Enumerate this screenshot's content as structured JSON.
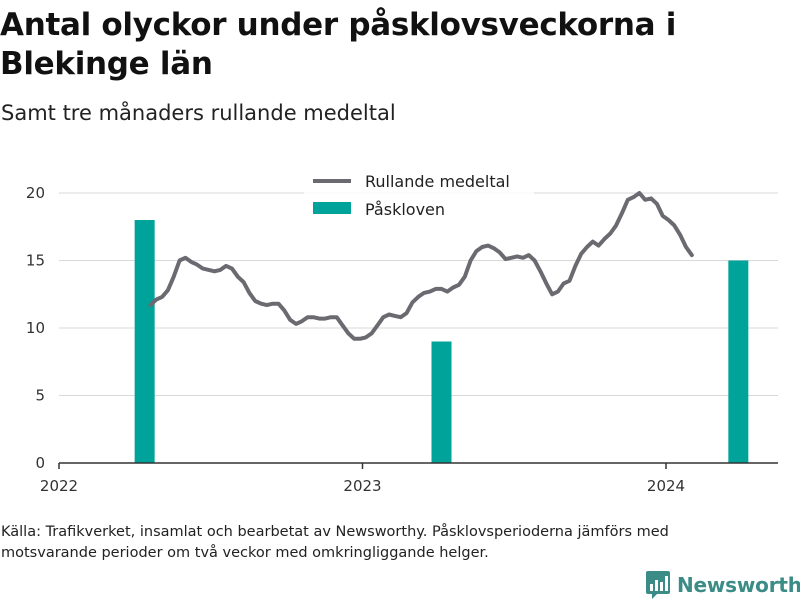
{
  "title": "Antal olyckor under påsklovsveckorna i Blekinge län",
  "subtitle": "Samt tre månaders rullande medeltal",
  "source": "Källa: Trafikverket, insamlat och bearbetat av Newsworthy. Påsklovsperioderna jämförs med motsvarande perioder om två veckor med omkringliggande helger.",
  "logo": {
    "text": "Newsworthy",
    "color": "#3b8b86"
  },
  "chart_data": {
    "type": "bar+line",
    "xlabel": "",
    "ylabel": "",
    "ylim": [
      0,
      20
    ],
    "yticks": [
      0,
      5,
      10,
      15,
      20
    ],
    "xticks": [
      "2022",
      "2023",
      "2024"
    ],
    "grid": true,
    "legend_position": "top",
    "series": [
      {
        "name": "Rullande medeltal",
        "type": "line",
        "color": "#6b6a70",
        "points": [
          [
            "2022-04-21",
            11.7
          ],
          [
            "2022-04-28",
            12.1
          ],
          [
            "2022-05-05",
            12.3
          ],
          [
            "2022-05-12",
            12.8
          ],
          [
            "2022-05-19",
            13.8
          ],
          [
            "2022-05-26",
            15.0
          ],
          [
            "2022-06-02",
            15.2
          ],
          [
            "2022-06-09",
            14.9
          ],
          [
            "2022-06-16",
            14.7
          ],
          [
            "2022-06-23",
            14.4
          ],
          [
            "2022-06-30",
            14.3
          ],
          [
            "2022-07-07",
            14.2
          ],
          [
            "2022-07-14",
            14.3
          ],
          [
            "2022-07-21",
            14.6
          ],
          [
            "2022-07-28",
            14.4
          ],
          [
            "2022-08-04",
            13.8
          ],
          [
            "2022-08-11",
            13.4
          ],
          [
            "2022-08-18",
            12.6
          ],
          [
            "2022-08-25",
            12.0
          ],
          [
            "2022-09-01",
            11.8
          ],
          [
            "2022-09-08",
            11.7
          ],
          [
            "2022-09-15",
            11.8
          ],
          [
            "2022-09-22",
            11.8
          ],
          [
            "2022-09-29",
            11.3
          ],
          [
            "2022-10-06",
            10.6
          ],
          [
            "2022-10-13",
            10.3
          ],
          [
            "2022-10-20",
            10.5
          ],
          [
            "2022-10-27",
            10.8
          ],
          [
            "2022-11-03",
            10.8
          ],
          [
            "2022-11-10",
            10.7
          ],
          [
            "2022-11-17",
            10.7
          ],
          [
            "2022-11-24",
            10.8
          ],
          [
            "2022-12-01",
            10.8
          ],
          [
            "2022-12-08",
            10.2
          ],
          [
            "2022-12-15",
            9.6
          ],
          [
            "2022-12-22",
            9.2
          ],
          [
            "2022-12-29",
            9.2
          ],
          [
            "2023-01-05",
            9.3
          ],
          [
            "2023-01-12",
            9.6
          ],
          [
            "2023-01-19",
            10.2
          ],
          [
            "2023-01-26",
            10.8
          ],
          [
            "2023-02-02",
            11.0
          ],
          [
            "2023-02-09",
            10.9
          ],
          [
            "2023-02-16",
            10.8
          ],
          [
            "2023-02-23",
            11.1
          ],
          [
            "2023-03-02",
            11.9
          ],
          [
            "2023-03-09",
            12.3
          ],
          [
            "2023-03-16",
            12.6
          ],
          [
            "2023-03-23",
            12.7
          ],
          [
            "2023-03-30",
            12.9
          ],
          [
            "2023-04-06",
            12.9
          ],
          [
            "2023-04-13",
            12.7
          ],
          [
            "2023-04-20",
            13.0
          ],
          [
            "2023-04-27",
            13.2
          ],
          [
            "2023-05-04",
            13.8
          ],
          [
            "2023-05-11",
            15.0
          ],
          [
            "2023-05-18",
            15.7
          ],
          [
            "2023-05-25",
            16.0
          ],
          [
            "2023-06-01",
            16.1
          ],
          [
            "2023-06-08",
            15.9
          ],
          [
            "2023-06-15",
            15.6
          ],
          [
            "2023-06-22",
            15.1
          ],
          [
            "2023-06-29",
            15.2
          ],
          [
            "2023-07-06",
            15.3
          ],
          [
            "2023-07-13",
            15.2
          ],
          [
            "2023-07-20",
            15.4
          ],
          [
            "2023-07-27",
            15.0
          ],
          [
            "2023-08-03",
            14.2
          ],
          [
            "2023-08-10",
            13.3
          ],
          [
            "2023-08-17",
            12.5
          ],
          [
            "2023-08-24",
            12.7
          ],
          [
            "2023-08-31",
            13.3
          ],
          [
            "2023-09-07",
            13.5
          ],
          [
            "2023-09-14",
            14.6
          ],
          [
            "2023-09-21",
            15.5
          ],
          [
            "2023-09-28",
            16.0
          ],
          [
            "2023-10-05",
            16.4
          ],
          [
            "2023-10-12",
            16.1
          ],
          [
            "2023-10-19",
            16.6
          ],
          [
            "2023-10-26",
            17.0
          ],
          [
            "2023-11-02",
            17.6
          ],
          [
            "2023-11-09",
            18.5
          ],
          [
            "2023-11-16",
            19.5
          ],
          [
            "2023-11-23",
            19.7
          ],
          [
            "2023-11-30",
            20.0
          ],
          [
            "2023-12-07",
            19.5
          ],
          [
            "2023-12-14",
            19.6
          ],
          [
            "2023-12-21",
            19.2
          ],
          [
            "2023-12-28",
            18.3
          ],
          [
            "2024-01-04",
            18.0
          ],
          [
            "2024-01-11",
            17.6
          ],
          [
            "2024-01-18",
            16.9
          ],
          [
            "2024-01-25",
            16.0
          ],
          [
            "2024-02-01",
            15.4
          ]
        ]
      },
      {
        "name": "Påskloven",
        "type": "bar",
        "color": "#00a39a",
        "points": [
          [
            "2022-04-14",
            18
          ],
          [
            "2023-04-06",
            9
          ],
          [
            "2024-03-28",
            15
          ]
        ]
      }
    ]
  }
}
